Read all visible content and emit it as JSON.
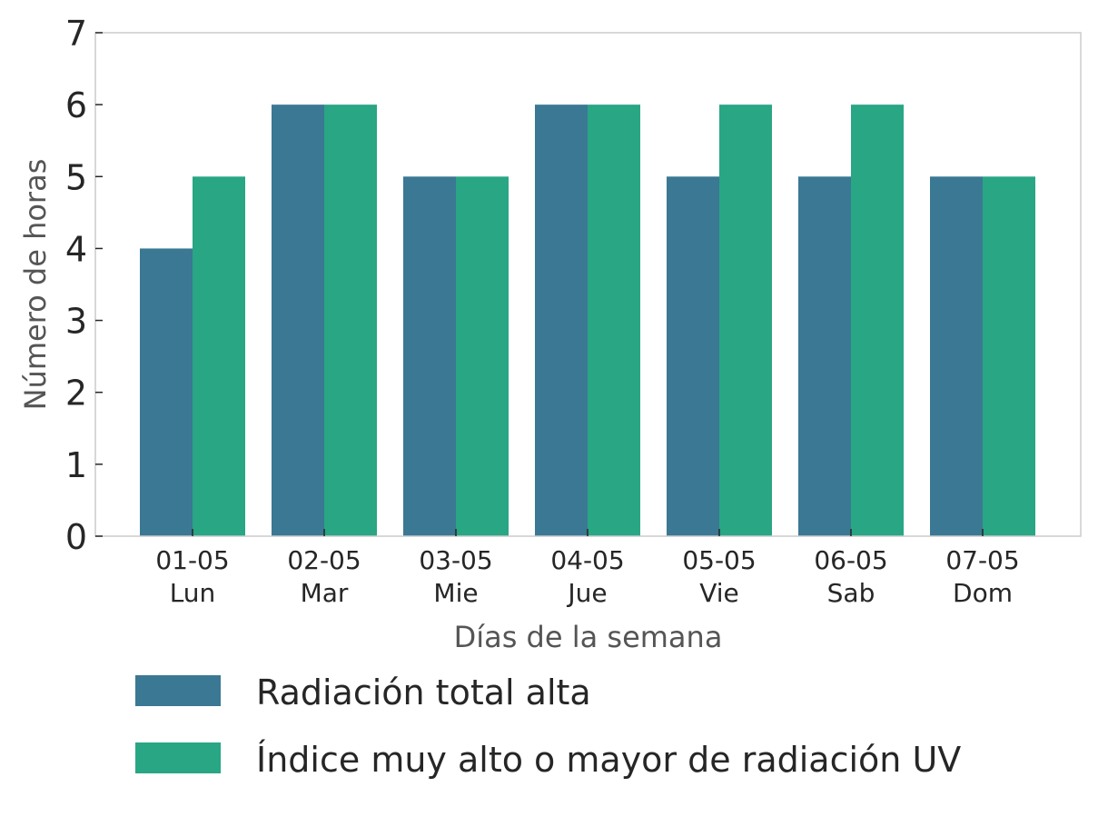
{
  "chart_data": {
    "type": "bar",
    "categories": [
      [
        "01-05",
        "Lun"
      ],
      [
        "02-05",
        "Mar"
      ],
      [
        "03-05",
        "Mie"
      ],
      [
        "04-05",
        "Jue"
      ],
      [
        "05-05",
        "Vie"
      ],
      [
        "06-05",
        "Sab"
      ],
      [
        "07-05",
        "Dom"
      ]
    ],
    "series": [
      {
        "name": "Radiación total alta",
        "color": "#3a7893",
        "values": [
          4,
          6,
          5,
          6,
          5,
          5,
          5
        ]
      },
      {
        "name": "Índice muy alto o mayor de radiación UV",
        "color": "#29a684",
        "values": [
          5,
          6,
          5,
          6,
          6,
          6,
          5
        ]
      }
    ],
    "xlabel": "Días de la semana",
    "ylabel": "Número de horas",
    "ylim": [
      0,
      7
    ],
    "yticks": [
      0,
      1,
      2,
      3,
      4,
      5,
      6,
      7
    ],
    "grid": false,
    "legend_position": "bottom"
  }
}
